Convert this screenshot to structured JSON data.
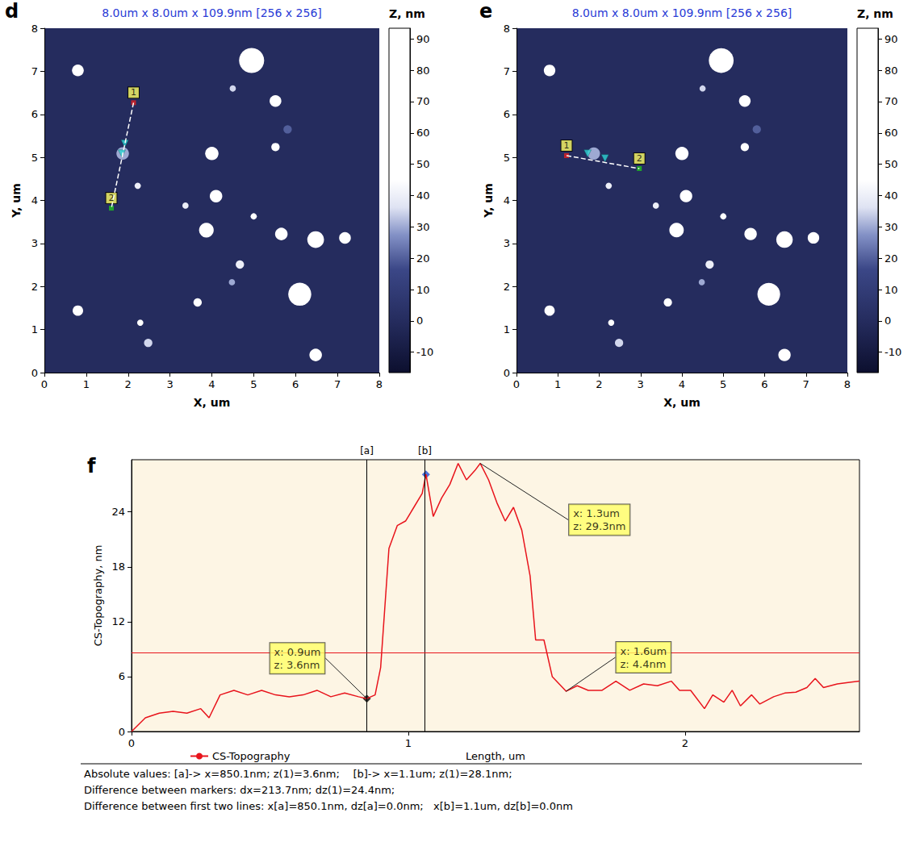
{
  "chart_data": [
    {
      "type": "scatter",
      "panel": "d",
      "title": "8.0um x 8.0um x 109.9nm [256 x 256]",
      "xlabel": "X, um",
      "ylabel": "Y, um",
      "xlim": [
        0,
        8
      ],
      "xticks": [
        0,
        1,
        2,
        3,
        4,
        5,
        6,
        7,
        8
      ],
      "ylim": [
        0,
        8
      ],
      "yticks": [
        0,
        1,
        2,
        3,
        4,
        5,
        6,
        7,
        8
      ],
      "particles": {
        "x": [
          0.8,
          4.95,
          5.52,
          1.87,
          4.0,
          5.52,
          5.81,
          2.23,
          4.1,
          3.37,
          5.0,
          3.87,
          5.66,
          6.48,
          7.18,
          4.67,
          4.48,
          6.1,
          3.66,
          0.8,
          2.29,
          2.48,
          6.48,
          4.5
        ],
        "y": [
          7.02,
          7.25,
          6.31,
          5.09,
          5.09,
          5.24,
          5.65,
          4.34,
          4.1,
          3.88,
          3.63,
          3.31,
          3.22,
          3.09,
          3.13,
          2.51,
          2.1,
          1.82,
          1.63,
          1.44,
          1.16,
          0.69,
          0.41,
          6.6
        ],
        "z": [
          80,
          50,
          45,
          30,
          85,
          70,
          20,
          40,
          75,
          40,
          50,
          90,
          80,
          95,
          85,
          40,
          30,
          90,
          60,
          55,
          45,
          35,
          75,
          35
        ],
        "size": [
          0.28,
          0.6,
          0.28,
          0.3,
          0.32,
          0.2,
          0.2,
          0.15,
          0.3,
          0.15,
          0.15,
          0.35,
          0.3,
          0.4,
          0.28,
          0.2,
          0.15,
          0.55,
          0.2,
          0.25,
          0.15,
          0.2,
          0.3,
          0.15
        ]
      },
      "colorbar": {
        "label": "Z, nm",
        "range": [
          -16.5,
          93.4
        ],
        "ticks": [
          -10,
          0,
          10,
          20,
          30,
          40,
          50,
          60,
          70,
          80,
          90
        ]
      },
      "profile_line": {
        "start": {
          "label": "1",
          "x": 2.13,
          "y": 6.27
        },
        "end": {
          "label": "2",
          "x": 1.6,
          "y": 3.82
        },
        "cursors": {
          "x": [
            1.92,
            1.85
          ],
          "y": [
            5.32,
            5.09
          ]
        }
      }
    },
    {
      "type": "scatter",
      "panel": "e",
      "title": "8.0um x 8.0um x 109.9nm [256 x 256]",
      "xlabel": "X, um",
      "ylabel": "Y, um",
      "xlim": [
        0,
        8
      ],
      "xticks": [
        0,
        1,
        2,
        3,
        4,
        5,
        6,
        7,
        8
      ],
      "ylim": [
        0,
        8
      ],
      "yticks": [
        0,
        1,
        2,
        3,
        4,
        5,
        6,
        7,
        8
      ],
      "particles": {
        "x": [
          0.8,
          4.95,
          5.52,
          1.87,
          4.0,
          5.52,
          5.81,
          2.23,
          4.1,
          3.37,
          5.0,
          3.87,
          5.66,
          6.48,
          7.18,
          4.67,
          4.48,
          6.1,
          3.66,
          0.8,
          2.29,
          2.48,
          6.48,
          4.5
        ],
        "y": [
          7.02,
          7.25,
          6.31,
          5.09,
          5.09,
          5.24,
          5.65,
          4.34,
          4.1,
          3.88,
          3.63,
          3.31,
          3.22,
          3.09,
          3.13,
          2.51,
          2.1,
          1.82,
          1.63,
          1.44,
          1.16,
          0.69,
          0.41,
          6.6
        ],
        "z": [
          80,
          50,
          45,
          30,
          85,
          70,
          20,
          40,
          75,
          40,
          50,
          90,
          80,
          95,
          85,
          40,
          30,
          90,
          60,
          55,
          45,
          35,
          75,
          35
        ],
        "size": [
          0.28,
          0.6,
          0.28,
          0.3,
          0.32,
          0.2,
          0.2,
          0.15,
          0.3,
          0.15,
          0.15,
          0.35,
          0.3,
          0.4,
          0.28,
          0.2,
          0.15,
          0.55,
          0.2,
          0.25,
          0.15,
          0.2,
          0.3,
          0.15
        ]
      },
      "colorbar": {
        "label": "Z, nm",
        "range": [
          -16.5,
          93.4
        ],
        "ticks": [
          -10,
          0,
          10,
          20,
          30,
          40,
          50,
          60,
          70,
          80,
          90
        ]
      },
      "profile_line": {
        "start": {
          "label": "1",
          "x": 1.21,
          "y": 5.04
        },
        "end": {
          "label": "2",
          "x": 2.97,
          "y": 4.74
        },
        "cursors": {
          "x": [
            1.72,
            2.14
          ],
          "y": [
            5.09,
            4.98
          ]
        }
      }
    },
    {
      "type": "line",
      "panel": "f",
      "xlabel": "Length, um",
      "ylabel": "CS-Topography, nm",
      "xlim": [
        0,
        2.63
      ],
      "xticks": [
        0,
        1,
        2
      ],
      "ylim": [
        0,
        29.7
      ],
      "yticks": [
        0,
        6,
        12,
        18,
        24
      ],
      "x": [
        0,
        0.05,
        0.1,
        0.15,
        0.2,
        0.25,
        0.28,
        0.32,
        0.37,
        0.42,
        0.47,
        0.52,
        0.57,
        0.62,
        0.67,
        0.72,
        0.77,
        0.82,
        0.8501,
        0.88,
        0.9,
        0.93,
        0.96,
        0.99,
        1.02,
        1.05,
        1.0638,
        1.09,
        1.12,
        1.15,
        1.18,
        1.21,
        1.24,
        1.26,
        1.29,
        1.32,
        1.35,
        1.38,
        1.41,
        1.44,
        1.46,
        1.49,
        1.52,
        1.57,
        1.61,
        1.65,
        1.7,
        1.75,
        1.8,
        1.85,
        1.9,
        1.95,
        1.98,
        2.02,
        2.07,
        2.1,
        2.14,
        2.17,
        2.2,
        2.24,
        2.27,
        2.32,
        2.36,
        2.4,
        2.44,
        2.47,
        2.5,
        2.55,
        2.6,
        2.63
      ],
      "series": [
        {
          "name": "CS-Topography",
          "color": "#e8141c",
          "values": [
            0,
            1.5,
            2,
            2.2,
            2,
            2.5,
            1.5,
            4,
            4.5,
            4,
            4.5,
            4,
            3.8,
            4,
            4.5,
            3.8,
            4.2,
            3.8,
            3.6,
            4,
            7,
            20,
            22.5,
            23,
            24.5,
            26,
            28.1,
            23.5,
            25.5,
            27,
            29.3,
            27.5,
            28.5,
            29.3,
            27.5,
            25,
            23,
            24.5,
            22,
            17,
            10,
            10,
            6,
            4.4,
            5,
            4.5,
            4.5,
            5.5,
            4.5,
            5.2,
            5,
            5.5,
            4.5,
            4.5,
            2.5,
            4,
            3.2,
            4.5,
            2.8,
            4,
            3,
            3.8,
            4.2,
            4.3,
            4.8,
            5.8,
            4.8,
            5.2,
            5.4,
            5.5
          ]
        }
      ],
      "cursors": [
        {
          "label": "[a]",
          "x": 0.8501,
          "z": 3.6,
          "color": "#000000"
        },
        {
          "label": "[b]",
          "x": 1.0638,
          "z": 28.1,
          "color": "#1f4fd8"
        }
      ],
      "level": 8.6,
      "annotations": [
        {
          "x": 0.8501,
          "y": 3.6,
          "text": [
            "x: 0.9um",
            "z: 3.6nm"
          ]
        },
        {
          "x": 1.26,
          "y": 29.3,
          "text": [
            "x: 1.3um",
            "z: 29.3nm"
          ]
        },
        {
          "x": 1.57,
          "y": 4.4,
          "text": [
            "x: 1.6um",
            "z: 4.4nm"
          ]
        }
      ],
      "legend": "bottom left",
      "footer": [
        "Absolute values: [a]-> x=850.1nm; z(1)=3.6nm;    [b]-> x=1.1um; z(1)=28.1nm;",
        "Difference between markers: dx=213.7nm; dz(1)=24.4nm;",
        "Difference between first two lines: x[a]=850.1nm, dz[a]=0.0nm;   x[b]=1.1um, dz[b]=0.0nm"
      ]
    }
  ]
}
